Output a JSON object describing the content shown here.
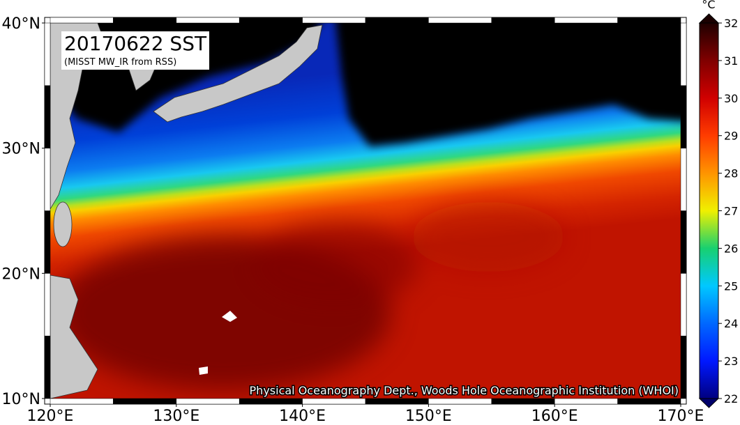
{
  "map": {
    "title": "20170622 SST",
    "subtitle": "(MISST MW_IR from RSS)",
    "credit": "Physical Oceanography Dept., Woods Hole Oceanographic Institution (WHOI)",
    "xlim": [
      120,
      170
    ],
    "ylim": [
      10,
      40
    ],
    "xticks": [
      {
        "value": 120,
        "label": "120°E"
      },
      {
        "value": 130,
        "label": "130°E"
      },
      {
        "value": 140,
        "label": "140°E"
      },
      {
        "value": 150,
        "label": "150°E"
      },
      {
        "value": 160,
        "label": "160°E"
      },
      {
        "value": 170,
        "label": "170°E"
      }
    ],
    "yticks": [
      {
        "value": 10,
        "label": "10°N"
      },
      {
        "value": 20,
        "label": "20°N"
      },
      {
        "value": 30,
        "label": "30°N"
      },
      {
        "value": 40,
        "label": "40°N"
      }
    ],
    "colorbar": {
      "unit": "°C",
      "lim": [
        22,
        32
      ],
      "ticks": [
        22,
        23,
        24,
        25,
        26,
        27,
        28,
        29,
        30,
        31,
        32
      ]
    }
  }
}
